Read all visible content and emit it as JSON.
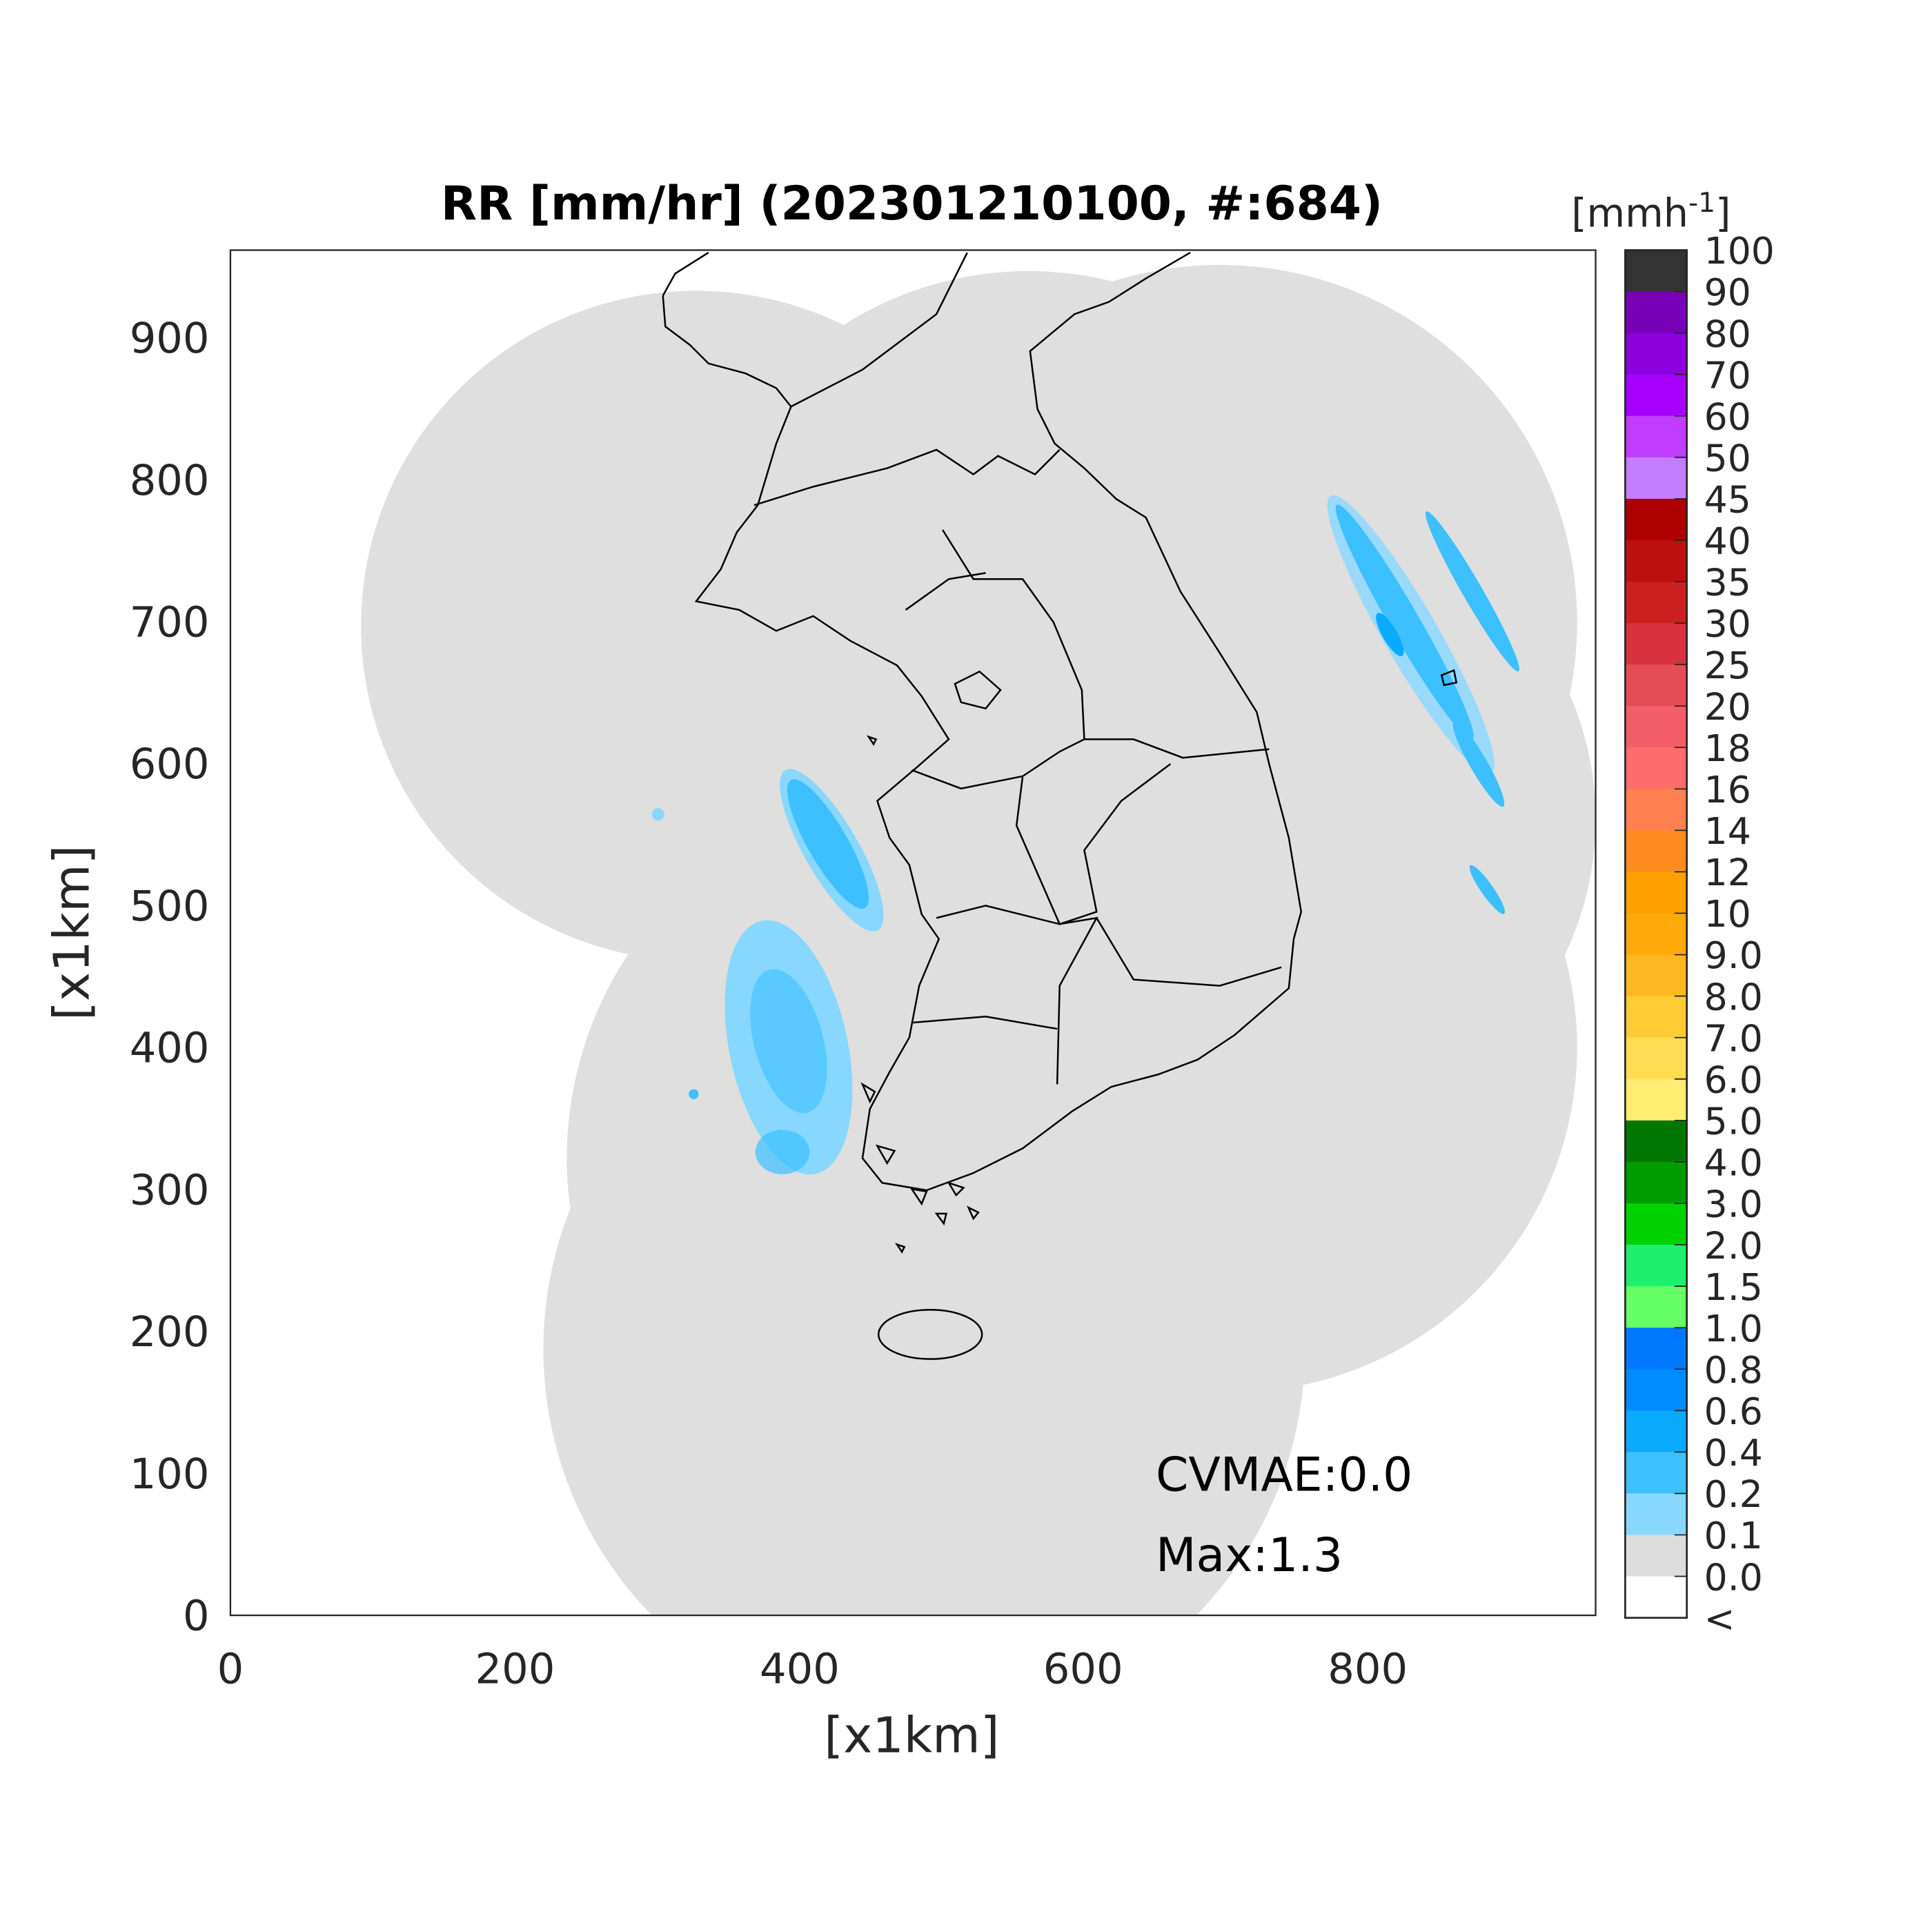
{
  "title": "RR [mm/hr] (202301210100, #:684)",
  "colorbar": {
    "unit_label": "[mmh",
    "unit_exponent": "-1",
    "unit_close": "]",
    "labels": [
      "100",
      "90",
      "80",
      "70",
      "60",
      "50",
      "45",
      "40",
      "35",
      "30",
      "25",
      "20",
      "18",
      "16",
      "14",
      "12",
      "10",
      "9.0",
      "8.0",
      "7.0",
      "6.0",
      "5.0",
      "4.0",
      "3.0",
      "2.0",
      "1.5",
      "1.0",
      "0.8",
      "0.6",
      "0.4",
      "0.2",
      "0.1",
      "0.0",
      "<"
    ],
    "colors": [
      "#333333",
      "#7800b8",
      "#8c00e0",
      "#a800ff",
      "#c03cff",
      "#c47dff",
      "#ae0000",
      "#bc1010",
      "#cc2020",
      "#d9323f",
      "#e64c55",
      "#f45e68",
      "#ff6c6c",
      "#ff8050",
      "#ff8c1e",
      "#ffa000",
      "#ffaa0a",
      "#ffb820",
      "#ffcc35",
      "#ffdc50",
      "#ffec70",
      "#007800",
      "#009c00",
      "#00d200",
      "#1ef06e",
      "#66ff66",
      "#0078ff",
      "#008cff",
      "#0aaaff",
      "#3cc0ff",
      "#87d7ff",
      "#dcdcdc",
      "#ffffff"
    ]
  },
  "chart_data": {
    "type": "heatmap",
    "title": "RR [mm/hr] (202301210100, #:684)",
    "xlabel": "[x1km]",
    "ylabel": "[x1km]",
    "xlim": [
      0,
      960
    ],
    "ylim": [
      0,
      960
    ],
    "xticks": [
      "0",
      "200",
      "400",
      "600",
      "800"
    ],
    "yticks": [
      "0",
      "100",
      "200",
      "300",
      "400",
      "500",
      "600",
      "700",
      "800",
      "900"
    ],
    "coverage_color": "#dcdcdc"
  },
  "annotations": {
    "cvmae": "CVMAE:0.0",
    "max": "Max:1.3"
  }
}
